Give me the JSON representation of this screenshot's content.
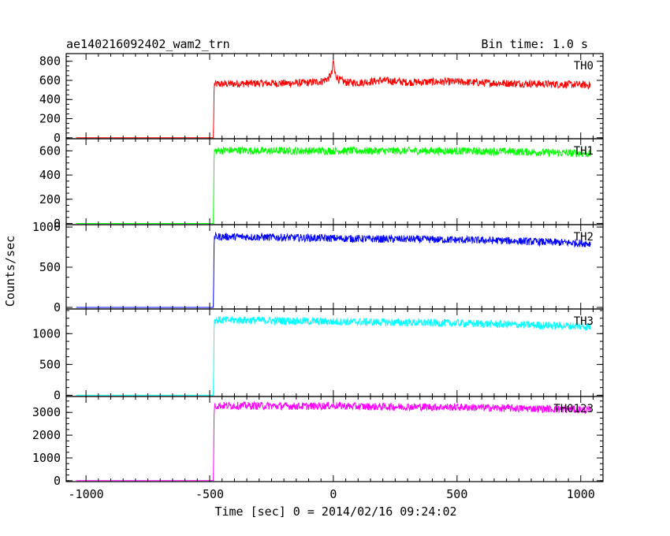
{
  "chart_data": {
    "type": "line",
    "title": "ae140216092402_wam2_trn",
    "subtitle": "Bin time: 1.0 s",
    "xlabel": "Time [sec] 0 = 2014/02/16 09:24:02",
    "ylabel": "Counts/sec",
    "xlim": [
      -1080,
      1090
    ],
    "xticks": [
      -1000,
      -500,
      0,
      500,
      1000
    ],
    "grid": false,
    "panels": [
      {
        "name": "TH0",
        "color": "#ff0000",
        "ylim": [
          -10,
          880
        ],
        "yticks": [
          0,
          200,
          400,
          600,
          800
        ],
        "series": [
          {
            "x": [
              -1040,
              -490,
              -485,
              -482,
              -400,
              -300,
              -200,
              -100,
              -50,
              -20,
              -5,
              0,
              5,
              20,
              50,
              100,
              200,
              300,
              400,
              500,
              600,
              700,
              800,
              900,
              1000,
              1040
            ],
            "y": [
              0,
              0,
              0,
              560,
              565,
              570,
              570,
              575,
              590,
              620,
              680,
              820,
              680,
              610,
              580,
              575,
              600,
              580,
              585,
              585,
              575,
              570,
              565,
              560,
              555,
              550
            ]
          }
        ]
      },
      {
        "name": "TH1",
        "color": "#00ff00",
        "ylim": [
          -10,
          700
        ],
        "yticks": [
          0,
          200,
          400,
          600
        ],
        "series": [
          {
            "x": [
              -1040,
              -490,
              -485,
              -482,
              -400,
              -300,
              -200,
              -100,
              0,
              100,
              200,
              300,
              400,
              500,
              600,
              700,
              800,
              900,
              1000,
              1040
            ],
            "y": [
              0,
              0,
              0,
              600,
              605,
              600,
              600,
              600,
              600,
              600,
              600,
              600,
              600,
              600,
              595,
              595,
              590,
              585,
              580,
              575
            ]
          }
        ]
      },
      {
        "name": "TH2",
        "color": "#0000ff",
        "ylim": [
          -20,
          1030
        ],
        "yticks": [
          0,
          500,
          1000
        ],
        "series": [
          {
            "x": [
              -1040,
              -490,
              -485,
              -482,
              -400,
              -300,
              -200,
              -100,
              0,
              100,
              200,
              300,
              400,
              500,
              600,
              700,
              800,
              900,
              1000,
              1040
            ],
            "y": [
              0,
              0,
              0,
              880,
              880,
              875,
              870,
              865,
              860,
              855,
              850,
              850,
              845,
              840,
              835,
              830,
              820,
              810,
              800,
              795
            ]
          }
        ]
      },
      {
        "name": "TH3",
        "color": "#00ffff",
        "ylim": [
          -20,
          1400
        ],
        "yticks": [
          0,
          500,
          1000
        ],
        "series": [
          {
            "x": [
              -1040,
              -490,
              -485,
              -482,
              -400,
              -300,
              -200,
              -100,
              0,
              100,
              200,
              300,
              400,
              500,
              600,
              700,
              800,
              900,
              1000,
              1040
            ],
            "y": [
              0,
              0,
              0,
              1220,
              1220,
              1215,
              1210,
              1200,
              1195,
              1190,
              1185,
              1180,
              1175,
              1170,
              1160,
              1150,
              1140,
              1130,
              1120,
              1110
            ]
          }
        ]
      },
      {
        "name": "TH0123",
        "color": "#ff00ff",
        "ylim": [
          -40,
          3700
        ],
        "yticks": [
          0,
          1000,
          2000,
          3000
        ],
        "series": [
          {
            "x": [
              -1040,
              -490,
              -485,
              -482,
              -400,
              -300,
              -200,
              -100,
              0,
              100,
              200,
              300,
              400,
              500,
              600,
              700,
              800,
              900,
              1000,
              1040
            ],
            "y": [
              0,
              0,
              0,
              3300,
              3300,
              3290,
              3280,
              3270,
              3300,
              3260,
              3250,
              3250,
              3240,
              3230,
              3210,
              3190,
              3170,
              3150,
              3120,
              3100
            ]
          }
        ]
      }
    ]
  }
}
